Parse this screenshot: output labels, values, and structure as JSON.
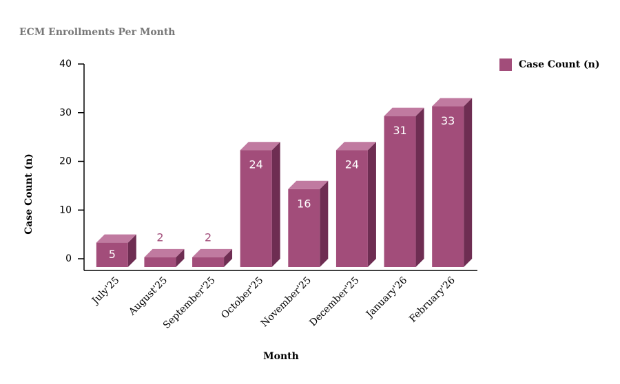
{
  "chart_data": {
    "type": "bar3d",
    "title": "ECM Enrollments Per Month",
    "x_label": "Month",
    "y_label": "Case Count (n)",
    "categories": [
      "July'25",
      "August'25",
      "September'25",
      "October'25",
      "November'25",
      "December'25",
      "January'26",
      "February'26"
    ],
    "series": [
      {
        "name": "Case Count (n)",
        "color": "#a24d7a",
        "values": [
          5,
          2,
          2,
          24,
          16,
          24,
          31,
          33
        ]
      }
    ],
    "ylim": [
      0,
      40
    ],
    "yticks": [
      0,
      10,
      20,
      30,
      40
    ],
    "legend": "top-right"
  }
}
